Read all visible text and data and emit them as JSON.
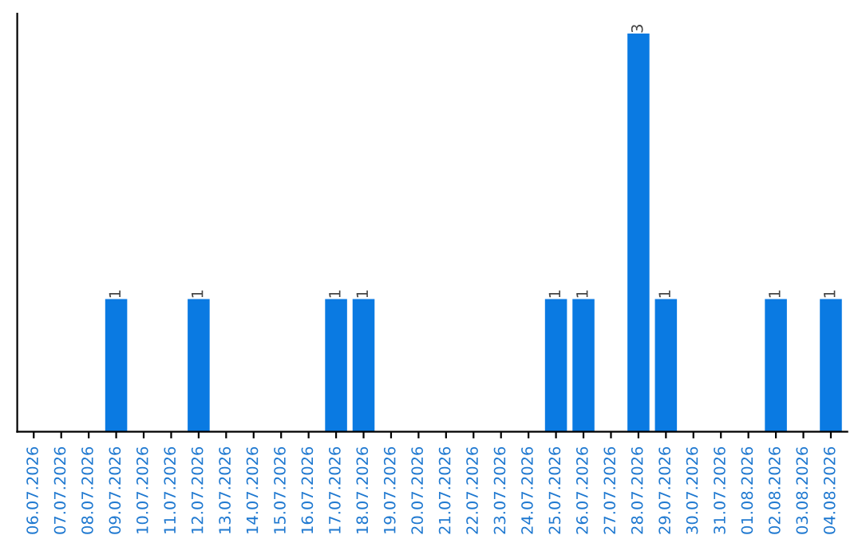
{
  "chart_data": {
    "type": "bar",
    "categories": [
      "06.07.2026",
      "07.07.2026",
      "08.07.2026",
      "09.07.2026",
      "10.07.2026",
      "11.07.2026",
      "12.07.2026",
      "13.07.2026",
      "14.07.2026",
      "15.07.2026",
      "16.07.2026",
      "17.07.2026",
      "18.07.2026",
      "19.07.2026",
      "20.07.2026",
      "21.07.2026",
      "22.07.2026",
      "23.07.2026",
      "24.07.2026",
      "25.07.2026",
      "26.07.2026",
      "27.07.2026",
      "28.07.2026",
      "29.07.2026",
      "30.07.2026",
      "31.07.2026",
      "01.08.2026",
      "02.08.2026",
      "03.08.2026",
      "04.08.2026"
    ],
    "values": [
      0,
      0,
      0,
      1,
      0,
      0,
      1,
      0,
      0,
      0,
      0,
      1,
      1,
      0,
      0,
      0,
      0,
      0,
      0,
      1,
      1,
      0,
      3,
      1,
      0,
      0,
      0,
      1,
      0,
      1
    ],
    "value_labels": [
      null,
      null,
      null,
      "1",
      null,
      null,
      "1",
      null,
      null,
      null,
      null,
      "1",
      "1",
      null,
      null,
      null,
      null,
      null,
      null,
      "1",
      "1",
      null,
      "3",
      "1",
      null,
      null,
      null,
      "1",
      null,
      "1"
    ],
    "color": "#0a7ae2",
    "tick_labels": "x",
    "grid": false,
    "legend": false
  }
}
